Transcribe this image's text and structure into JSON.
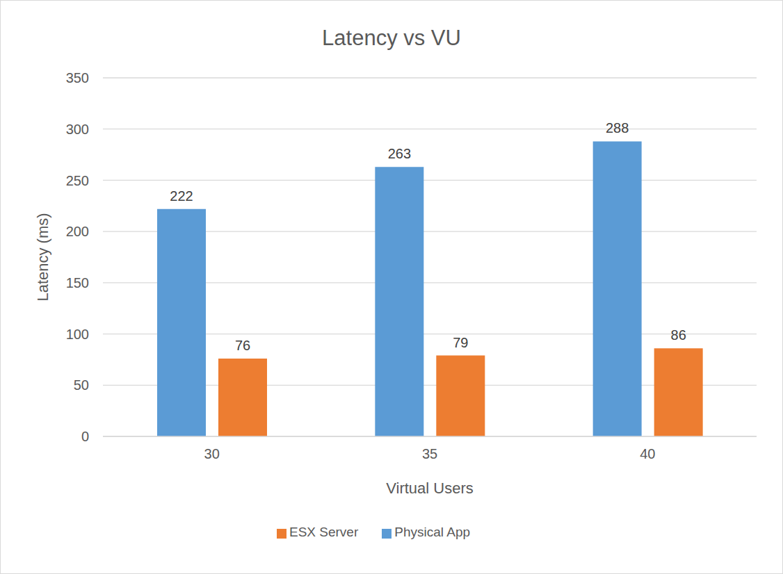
{
  "chart_data": {
    "type": "bar",
    "title": "Latency vs VU",
    "x_label": "Virtual Users",
    "y_label": "Latency (ms)",
    "categories": [
      "30",
      "35",
      "40"
    ],
    "series": [
      {
        "name": "Physical App",
        "color": "#5b9bd5",
        "values": [
          222,
          263,
          288
        ]
      },
      {
        "name": "ESX Server",
        "color": "#ed7d31",
        "values": [
          76,
          79,
          86
        ]
      }
    ],
    "ylim": [
      0,
      350
    ],
    "yticks": [
      0,
      50,
      100,
      150,
      200,
      250,
      300,
      350
    ],
    "grid": true,
    "legend": "bottom",
    "data_labels": true
  }
}
